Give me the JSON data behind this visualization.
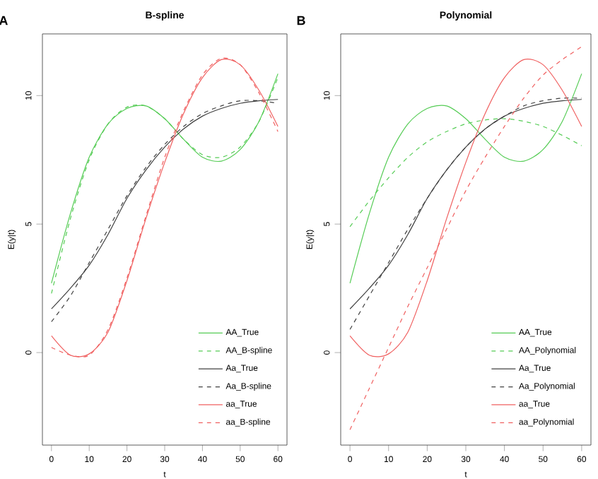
{
  "chart_data": [
    {
      "type": "line",
      "title": "B-spline",
      "xlabel": "t",
      "ylabel": "E(y|t)",
      "annotations": [
        "A"
      ],
      "xlim": [
        -2.4,
        62.4
      ],
      "ylim": [
        -3.6,
        12.4
      ],
      "xticks": [
        0,
        10,
        20,
        30,
        40,
        50,
        60
      ],
      "yticks": [
        0,
        5,
        10
      ],
      "legend": "bottom right",
      "x": [
        0,
        5,
        10,
        15,
        20,
        25,
        30,
        35,
        40,
        45,
        50,
        55,
        60
      ],
      "series": [
        {
          "name": "AA_True",
          "color": "#55cc55",
          "line_style": "solid",
          "values": [
            2.7,
            5.4,
            7.6,
            8.9,
            9.5,
            9.6,
            9.1,
            8.3,
            7.6,
            7.45,
            7.9,
            9.0,
            10.85
          ]
        },
        {
          "name": "AA_B-spline",
          "color": "#55cc55",
          "line_style": "dashed",
          "values": [
            2.3,
            5.2,
            7.5,
            8.9,
            9.55,
            9.6,
            9.1,
            8.3,
            7.7,
            7.6,
            8.0,
            9.0,
            10.7
          ]
        },
        {
          "name": "Aa_True",
          "color": "#404040",
          "line_style": "solid",
          "values": [
            1.7,
            2.5,
            3.4,
            4.6,
            6.0,
            7.1,
            8.0,
            8.7,
            9.2,
            9.5,
            9.7,
            9.8,
            9.85
          ]
        },
        {
          "name": "Aa_B-spline",
          "color": "#404040",
          "line_style": "dashed",
          "values": [
            1.2,
            2.2,
            3.5,
            4.8,
            6.1,
            7.2,
            8.1,
            8.8,
            9.3,
            9.6,
            9.8,
            9.8,
            9.7
          ]
        },
        {
          "name": "aa_True",
          "color": "#f06060",
          "line_style": "solid",
          "values": [
            0.65,
            -0.1,
            -0.05,
            0.8,
            2.8,
            5.2,
            7.4,
            9.3,
            10.7,
            11.4,
            11.2,
            10.2,
            8.8
          ]
        },
        {
          "name": "aa_B-spline",
          "color": "#f06060",
          "line_style": "dashed",
          "values": [
            0.2,
            -0.1,
            -0.1,
            0.9,
            2.9,
            5.3,
            7.6,
            9.4,
            10.8,
            11.45,
            11.2,
            10.1,
            8.6
          ]
        }
      ]
    },
    {
      "type": "line",
      "title": "Polynomial",
      "xlabel": "t",
      "ylabel": "E(y|t)",
      "annotations": [
        "B"
      ],
      "xlim": [
        -2.4,
        62.4
      ],
      "ylim": [
        -3.6,
        12.4
      ],
      "xticks": [
        0,
        10,
        20,
        30,
        40,
        50,
        60
      ],
      "yticks": [
        0,
        5,
        10
      ],
      "legend": "bottom right",
      "x": [
        0,
        5,
        10,
        15,
        20,
        25,
        30,
        35,
        40,
        45,
        50,
        55,
        60
      ],
      "series": [
        {
          "name": "AA_True",
          "color": "#55cc55",
          "line_style": "solid",
          "values": [
            2.7,
            5.4,
            7.6,
            8.9,
            9.5,
            9.6,
            9.1,
            8.3,
            7.6,
            7.45,
            7.9,
            9.0,
            10.85
          ]
        },
        {
          "name": "AA_Polynomial",
          "color": "#55cc55",
          "line_style": "dashed",
          "values": [
            4.9,
            5.9,
            6.8,
            7.6,
            8.2,
            8.6,
            8.9,
            9.05,
            9.1,
            9.0,
            8.8,
            8.45,
            8.05
          ]
        },
        {
          "name": "Aa_True",
          "color": "#404040",
          "line_style": "solid",
          "values": [
            1.7,
            2.5,
            3.4,
            4.6,
            6.0,
            7.1,
            8.0,
            8.7,
            9.2,
            9.5,
            9.7,
            9.8,
            9.85
          ]
        },
        {
          "name": "Aa_Polynomial",
          "color": "#404040",
          "line_style": "dashed",
          "values": [
            0.9,
            2.2,
            3.5,
            4.8,
            6.0,
            7.1,
            8.0,
            8.7,
            9.2,
            9.6,
            9.8,
            9.9,
            9.9
          ]
        },
        {
          "name": "aa_True",
          "color": "#f06060",
          "line_style": "solid",
          "values": [
            0.65,
            -0.1,
            -0.05,
            0.8,
            2.8,
            5.2,
            7.4,
            9.3,
            10.7,
            11.4,
            11.2,
            10.2,
            8.8
          ]
        },
        {
          "name": "aa_Polynomial",
          "color": "#f06060",
          "line_style": "dashed",
          "values": [
            -3.0,
            -1.4,
            0.2,
            1.8,
            3.3,
            4.8,
            6.3,
            7.6,
            8.8,
            9.9,
            10.8,
            11.4,
            11.9
          ]
        }
      ]
    }
  ]
}
